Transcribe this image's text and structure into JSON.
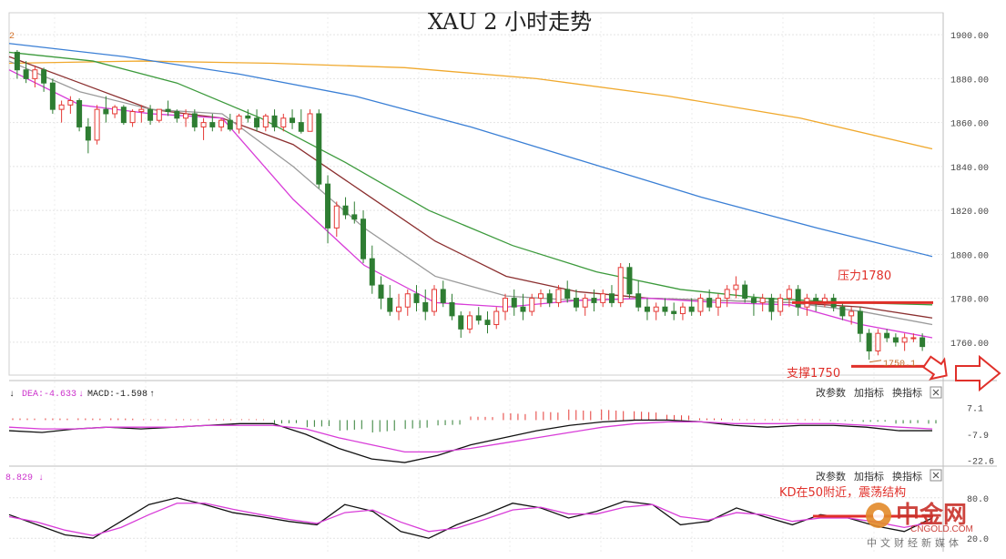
{
  "title": "XAU 2 小时走势",
  "corner_label": "2",
  "colors": {
    "up": "#e53935",
    "down": "#2e7d32",
    "ma_orange": "#f0a92e",
    "ma_blue": "#3a7fd5",
    "ma_green": "#3c9a3c",
    "ma_brown": "#8b2f2f",
    "ma_gray": "#9a9a9a",
    "ma_pink": "#d83cd8",
    "line_black": "#111111",
    "annotation_red": "#e0302a",
    "grid": "#e4e4e4"
  },
  "chart_data": [
    {
      "type": "candlestick",
      "title": "XAU 2 小时走势",
      "y_ticks": [
        "1900.00",
        "1880.00",
        "1860.00",
        "1840.00",
        "1820.00",
        "1800.00",
        "1780.00",
        "1760.00"
      ],
      "ylim": [
        1745,
        1910
      ],
      "grid": true,
      "candles": [
        [
          1892,
          1893,
          1880,
          1884
        ],
        [
          1884,
          1888,
          1878,
          1880
        ],
        [
          1880,
          1886,
          1876,
          1884
        ],
        [
          1884,
          1885,
          1874,
          1878
        ],
        [
          1878,
          1880,
          1864,
          1866
        ],
        [
          1866,
          1870,
          1860,
          1868
        ],
        [
          1868,
          1872,
          1864,
          1870
        ],
        [
          1870,
          1871,
          1856,
          1858
        ],
        [
          1858,
          1862,
          1846,
          1852
        ],
        [
          1852,
          1868,
          1850,
          1866
        ],
        [
          1866,
          1872,
          1860,
          1864
        ],
        [
          1864,
          1868,
          1862,
          1867
        ],
        [
          1867,
          1868,
          1859,
          1860
        ],
        [
          1860,
          1866,
          1858,
          1865
        ],
        [
          1865,
          1868,
          1860,
          1866
        ],
        [
          1866,
          1868,
          1859,
          1861
        ],
        [
          1861,
          1866,
          1860,
          1866
        ],
        [
          1866,
          1870,
          1863,
          1865
        ],
        [
          1865,
          1866,
          1860,
          1862
        ],
        [
          1862,
          1866,
          1858,
          1864
        ],
        [
          1864,
          1866,
          1856,
          1858
        ],
        [
          1858,
          1862,
          1852,
          1860
        ],
        [
          1860,
          1864,
          1856,
          1858
        ],
        [
          1858,
          1862,
          1856,
          1861
        ],
        [
          1861,
          1864,
          1856,
          1857
        ],
        [
          1857,
          1864,
          1855,
          1863
        ],
        [
          1863,
          1866,
          1860,
          1862
        ],
        [
          1862,
          1866,
          1856,
          1858
        ],
        [
          1858,
          1864,
          1856,
          1863
        ],
        [
          1863,
          1866,
          1856,
          1858
        ],
        [
          1858,
          1864,
          1856,
          1862
        ],
        [
          1862,
          1866,
          1857,
          1860
        ],
        [
          1860,
          1866,
          1855,
          1856
        ],
        [
          1856,
          1866,
          1856,
          1864
        ],
        [
          1864,
          1866,
          1830,
          1832
        ],
        [
          1832,
          1836,
          1805,
          1812
        ],
        [
          1812,
          1824,
          1808,
          1822
        ],
        [
          1822,
          1826,
          1816,
          1818
        ],
        [
          1818,
          1824,
          1814,
          1816
        ],
        [
          1816,
          1820,
          1796,
          1798
        ],
        [
          1798,
          1804,
          1782,
          1786
        ],
        [
          1786,
          1790,
          1775,
          1780
        ],
        [
          1780,
          1786,
          1772,
          1774
        ],
        [
          1774,
          1782,
          1770,
          1776
        ],
        [
          1776,
          1784,
          1772,
          1782
        ],
        [
          1782,
          1786,
          1774,
          1778
        ],
        [
          1778,
          1784,
          1770,
          1774
        ],
        [
          1774,
          1786,
          1772,
          1784
        ],
        [
          1784,
          1788,
          1776,
          1778
        ],
        [
          1778,
          1782,
          1770,
          1772
        ],
        [
          1772,
          1774,
          1762,
          1766
        ],
        [
          1766,
          1774,
          1764,
          1772
        ],
        [
          1772,
          1776,
          1768,
          1770
        ],
        [
          1770,
          1774,
          1764,
          1768
        ],
        [
          1768,
          1776,
          1766,
          1774
        ],
        [
          1774,
          1782,
          1770,
          1780
        ],
        [
          1780,
          1784,
          1772,
          1776
        ],
        [
          1776,
          1782,
          1770,
          1774
        ],
        [
          1774,
          1782,
          1772,
          1780
        ],
        [
          1780,
          1784,
          1776,
          1782
        ],
        [
          1782,
          1784,
          1776,
          1778
        ],
        [
          1778,
          1786,
          1776,
          1784
        ],
        [
          1784,
          1788,
          1778,
          1780
        ],
        [
          1780,
          1784,
          1774,
          1776
        ],
        [
          1776,
          1782,
          1772,
          1780
        ],
        [
          1780,
          1784,
          1774,
          1778
        ],
        [
          1778,
          1784,
          1776,
          1782
        ],
        [
          1782,
          1786,
          1776,
          1778
        ],
        [
          1778,
          1796,
          1776,
          1794
        ],
        [
          1794,
          1796,
          1780,
          1782
        ],
        [
          1782,
          1788,
          1774,
          1776
        ],
        [
          1776,
          1780,
          1770,
          1774
        ],
        [
          1774,
          1778,
          1770,
          1776
        ],
        [
          1776,
          1780,
          1772,
          1774
        ],
        [
          1774,
          1778,
          1770,
          1773
        ],
        [
          1773,
          1778,
          1770,
          1776
        ],
        [
          1776,
          1780,
          1772,
          1774
        ],
        [
          1774,
          1782,
          1772,
          1780
        ],
        [
          1780,
          1784,
          1774,
          1776
        ],
        [
          1776,
          1782,
          1772,
          1780
        ],
        [
          1780,
          1786,
          1776,
          1784
        ],
        [
          1784,
          1790,
          1780,
          1786
        ],
        [
          1786,
          1788,
          1778,
          1780
        ],
        [
          1780,
          1782,
          1772,
          1778
        ],
        [
          1778,
          1782,
          1774,
          1780
        ],
        [
          1780,
          1782,
          1770,
          1774
        ],
        [
          1774,
          1782,
          1772,
          1780
        ],
        [
          1780,
          1786,
          1776,
          1784
        ],
        [
          1784,
          1786,
          1772,
          1776
        ],
        [
          1776,
          1782,
          1772,
          1780
        ],
        [
          1780,
          1782,
          1774,
          1778
        ],
        [
          1778,
          1782,
          1776,
          1780
        ],
        [
          1780,
          1782,
          1774,
          1776
        ],
        [
          1776,
          1778,
          1770,
          1772
        ],
        [
          1772,
          1776,
          1768,
          1774
        ],
        [
          1774,
          1776,
          1760,
          1764
        ],
        [
          1764,
          1766,
          1752,
          1756
        ],
        [
          1756,
          1766,
          1754,
          1764
        ],
        [
          1764,
          1766,
          1760,
          1762
        ],
        [
          1762,
          1764,
          1758,
          1760
        ],
        [
          1760,
          1764,
          1756,
          1762
        ],
        [
          1762,
          1764,
          1760,
          1762
        ],
        [
          1762,
          1764,
          1756,
          1758
        ]
      ],
      "moving_averages": [
        {
          "color_key": "ma_orange",
          "values": [
            1887,
            1888,
            1887,
            1885,
            1880,
            1872,
            1862,
            1848
          ]
        },
        {
          "color_key": "ma_blue",
          "values": [
            1896,
            1890,
            1882,
            1872,
            1858,
            1842,
            1826,
            1812,
            1799
          ]
        },
        {
          "color_key": "ma_green",
          "values": [
            1892,
            1888,
            1878,
            1862,
            1842,
            1820,
            1804,
            1792,
            1784,
            1780,
            1778,
            1777
          ]
        },
        {
          "color_key": "ma_brown",
          "values": [
            1890,
            1878,
            1866,
            1862,
            1850,
            1828,
            1806,
            1790,
            1783,
            1780,
            1779,
            1778,
            1776,
            1771
          ]
        },
        {
          "color_key": "ma_gray",
          "values": [
            1888,
            1874,
            1866,
            1864,
            1840,
            1812,
            1790,
            1781,
            1779,
            1780,
            1779,
            1778,
            1774,
            1768
          ]
        },
        {
          "color_key": "ma_pink",
          "values": [
            1884,
            1868,
            1864,
            1862,
            1825,
            1795,
            1778,
            1776,
            1779,
            1780,
            1778,
            1777,
            1768,
            1762
          ]
        }
      ],
      "price_labels": [
        {
          "label": "1750.1",
          "value": 1750.1
        }
      ],
      "annotations": [
        {
          "text": "压力1780",
          "level": 1780
        },
        {
          "text": "支撑1750",
          "level": 1750
        }
      ]
    },
    {
      "type": "macd",
      "legend_items": [
        "DEA:-4.633",
        "MACD:-1.598"
      ],
      "controls": [
        "改参数",
        "加指标",
        "换指标"
      ],
      "y_ticks": [
        "7.1",
        "-7.9",
        "-22.6"
      ],
      "ylim": [
        -25,
        10
      ],
      "dif": [
        -6,
        -7,
        -5,
        -4,
        -5,
        -4,
        -3,
        -2,
        -2,
        -8,
        -16,
        -22,
        -24,
        -20,
        -14,
        -10,
        -6,
        -3,
        -1,
        0,
        0,
        -1,
        -3,
        -4,
        -3,
        -3,
        -4,
        -6,
        -6
      ],
      "dea": [
        -4,
        -5,
        -5,
        -4,
        -4,
        -4,
        -3,
        -3,
        -3,
        -5,
        -10,
        -14,
        -18,
        -18,
        -16,
        -13,
        -10,
        -7,
        -4,
        -2,
        -1,
        -1,
        -2,
        -2,
        -2,
        -2,
        -3,
        -4,
        -5
      ],
      "histogram": [
        1,
        1,
        1,
        1,
        0.5,
        0.5,
        0.5,
        0.5,
        -2,
        -4,
        -6,
        -7,
        -5,
        -3,
        2,
        4,
        5,
        6,
        6,
        5,
        3,
        1,
        0.5,
        0.5,
        0.5,
        -0.5,
        -1,
        -2,
        -2
      ]
    },
    {
      "type": "kd",
      "legend_items": [
        "8.829"
      ],
      "controls": [
        "改参数",
        "加指标",
        "换指标"
      ],
      "y_ticks": [
        "80.0",
        "20.0"
      ],
      "ylim": [
        0,
        100
      ],
      "k": [
        55,
        40,
        25,
        20,
        45,
        70,
        80,
        70,
        58,
        52,
        45,
        40,
        70,
        60,
        30,
        20,
        40,
        55,
        72,
        65,
        50,
        60,
        75,
        70,
        40,
        45,
        65,
        52,
        40,
        55,
        50,
        38,
        30,
        50
      ],
      "d": [
        52,
        44,
        32,
        24,
        36,
        55,
        72,
        72,
        63,
        55,
        48,
        42,
        58,
        62,
        44,
        30,
        35,
        48,
        62,
        66,
        56,
        56,
        66,
        70,
        52,
        47,
        58,
        55,
        45,
        50,
        50,
        44,
        36,
        44
      ],
      "annotation": "KD在50附近，震荡结构"
    }
  ],
  "watermark": {
    "main": "中金网",
    "url": "CNGOLD.COM",
    "cn": "中文财经新媒体"
  }
}
